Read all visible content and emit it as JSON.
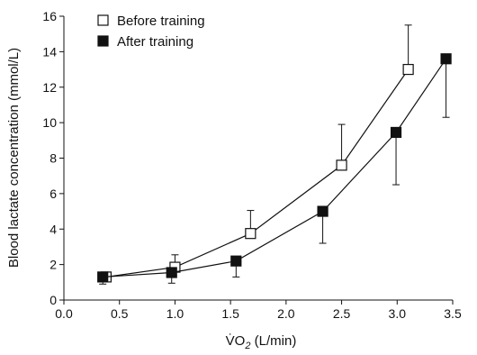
{
  "chart_data": {
    "type": "line",
    "title": "",
    "xlabel_prefix": "V̇O",
    "xlabel_subscript": "2",
    "xlabel_suffix": " (L/min)",
    "ylabel": "Blood lactate concentration (mmol/L)",
    "xlim": [
      0,
      3.5
    ],
    "ylim": [
      0,
      16
    ],
    "x_ticks": [
      0.0,
      0.5,
      1.0,
      1.5,
      2.0,
      2.5,
      3.0,
      3.5
    ],
    "x_tick_labels": [
      "0.0",
      "0.5",
      "1.0",
      "1.5",
      "2.0",
      "2.5",
      "3.0",
      "3.5"
    ],
    "y_ticks": [
      0,
      2,
      4,
      6,
      8,
      10,
      12,
      14,
      16
    ],
    "y_tick_labels": [
      "0",
      "2",
      "4",
      "6",
      "8",
      "10",
      "12",
      "14",
      "16"
    ],
    "grid": false,
    "legend_position": "top-left",
    "series": [
      {
        "name": "Before training",
        "marker": "open-square",
        "fill": "#ffffff",
        "stroke": "#111111",
        "error_direction": "up",
        "points": [
          {
            "x": 0.38,
            "y": 1.3,
            "err": 0.2
          },
          {
            "x": 1.0,
            "y": 1.85,
            "err": 0.7
          },
          {
            "x": 1.68,
            "y": 3.75,
            "err": 1.3
          },
          {
            "x": 2.5,
            "y": 7.6,
            "err": 2.3
          },
          {
            "x": 3.1,
            "y": 13.0,
            "err": 2.5
          }
        ]
      },
      {
        "name": "After training",
        "marker": "filled-square",
        "fill": "#111111",
        "stroke": "#111111",
        "error_direction": "down",
        "points": [
          {
            "x": 0.35,
            "y": 1.3,
            "err": 0.4
          },
          {
            "x": 0.97,
            "y": 1.55,
            "err": 0.6
          },
          {
            "x": 1.55,
            "y": 2.2,
            "err": 0.9
          },
          {
            "x": 2.33,
            "y": 5.0,
            "err": 1.8
          },
          {
            "x": 2.99,
            "y": 9.45,
            "err": 2.95
          },
          {
            "x": 3.44,
            "y": 13.6,
            "err": 3.3
          }
        ]
      }
    ]
  }
}
